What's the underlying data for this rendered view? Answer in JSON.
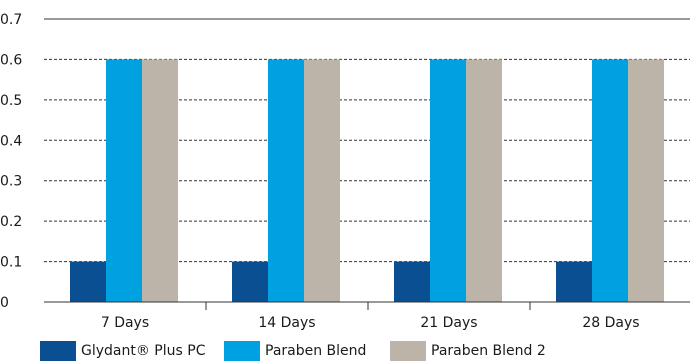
{
  "chart_data": {
    "type": "bar",
    "categories": [
      "7 Days",
      "14 Days",
      "21 Days",
      "28 Days"
    ],
    "series": [
      {
        "name": "Glydant® Plus PC",
        "values": [
          0.1,
          0.1,
          0.1,
          0.1
        ],
        "color": "#0b4f93"
      },
      {
        "name": "Paraben Blend",
        "values": [
          0.6,
          0.6,
          0.6,
          0.6
        ],
        "color": "#00a1e0"
      },
      {
        "name": "Paraben Blend 2",
        "values": [
          0.6,
          0.6,
          0.6,
          0.6
        ],
        "color": "#bcb3a9"
      }
    ],
    "title": "",
    "xlabel": "",
    "ylabel": "",
    "ylim": [
      0,
      0.7
    ],
    "yticks": [
      "0",
      "0.1",
      "0.2",
      "0.3",
      "0.4",
      "0.5",
      "0.6",
      "0.7"
    ],
    "grid": true,
    "legend_position": "bottom"
  }
}
